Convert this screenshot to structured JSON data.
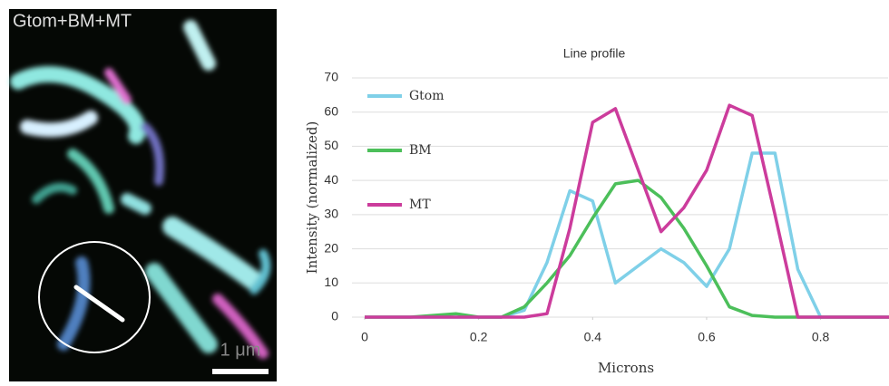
{
  "image": {
    "label": "Gtom+BM+MT",
    "scale_bar": "1 μm"
  },
  "chart_data": {
    "type": "line",
    "title": "Line profile",
    "x_label": "Microns",
    "y_label": "Intensity (normalized)",
    "x": [
      0,
      0.04,
      0.08,
      0.12,
      0.16,
      0.2,
      0.24,
      0.28,
      0.32,
      0.36,
      0.4,
      0.44,
      0.48,
      0.52,
      0.56,
      0.6,
      0.64,
      0.68,
      0.72,
      0.76,
      0.8,
      0.84,
      0.88,
      0.92
    ],
    "series": [
      {
        "name": "Gtom",
        "color": "#7fd0e8",
        "values": [
          0,
          0,
          0,
          0,
          0,
          0,
          0,
          2,
          16,
          37,
          34,
          10,
          15,
          20,
          16,
          9,
          20,
          48,
          48,
          14,
          0,
          0,
          0,
          0
        ]
      },
      {
        "name": "BM",
        "color": "#4cbf5a",
        "values": [
          0,
          0,
          0,
          0.5,
          1,
          0,
          0,
          3,
          10,
          18,
          29,
          39,
          40,
          35,
          26,
          15,
          3,
          0.5,
          0,
          0,
          0,
          0,
          0,
          0
        ]
      },
      {
        "name": "MT",
        "color": "#cc3c9c",
        "values": [
          0,
          0,
          0,
          0,
          0,
          0,
          0,
          0,
          1,
          26,
          57,
          61,
          43,
          25,
          32,
          43,
          62,
          59,
          30,
          0,
          0,
          0,
          0,
          0
        ]
      }
    ],
    "xlim": [
      0,
      0.92
    ],
    "xticks": [
      0,
      0.2,
      0.4,
      0.6,
      0.8
    ],
    "ylim": [
      0,
      70
    ],
    "yticks": [
      0,
      10,
      20,
      30,
      40,
      50,
      60,
      70
    ],
    "grid": true,
    "legend": "upper left"
  }
}
